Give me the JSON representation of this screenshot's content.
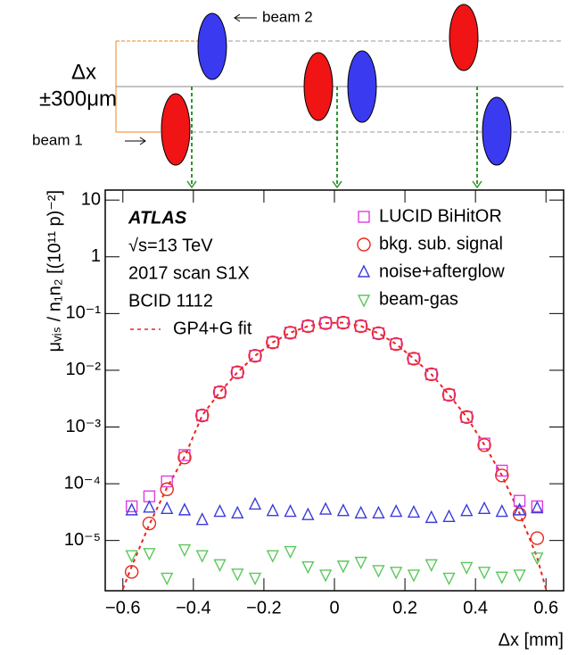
{
  "diagram": {
    "beam2": "beam 2",
    "delta": "Δx",
    "range": "±300μm",
    "beam1": "beam 1"
  },
  "chart_data": {
    "type": "scatter",
    "x_label": "Δx [mm]",
    "y_label": "μᵥᵢₛ / n₁n₂ [(10¹¹ p)⁻²]",
    "annotations": [
      "ATLAS",
      "√s=13 TeV",
      "2017 scan S1X",
      "BCID 1112"
    ],
    "log_y": true,
    "legend": "upper right",
    "xlim": [
      -0.65,
      0.65
    ],
    "ylim": [
      1.3e-06,
      15
    ],
    "xticks": [
      {
        "value": -0.6,
        "label": "−0.6"
      },
      {
        "value": -0.4,
        "label": "−0.4"
      },
      {
        "value": -0.2,
        "label": "−0.2"
      },
      0,
      0.2,
      0.4,
      0.6
    ],
    "yticks": [
      {
        "value": 1e-05,
        "label": "10⁻⁵"
      },
      {
        "value": 0.0001,
        "label": "10⁻⁴"
      },
      {
        "value": 0.001,
        "label": "10⁻³"
      },
      {
        "value": 0.01,
        "label": "10⁻²"
      },
      {
        "value": 0.1,
        "label": "10⁻¹"
      },
      1,
      10
    ],
    "x": [
      -0.575,
      -0.525,
      -0.475,
      -0.425,
      -0.375,
      -0.325,
      -0.275,
      -0.225,
      -0.175,
      -0.125,
      -0.075,
      -0.025,
      0.025,
      0.075,
      0.125,
      0.175,
      0.225,
      0.275,
      0.325,
      0.375,
      0.425,
      0.475,
      0.525,
      0.575
    ],
    "series": [
      {
        "name": "LUCID BiHitOR",
        "color": "#e03ce0",
        "marker": "square",
        "values": [
          4e-05,
          6e-05,
          0.00011,
          0.00032,
          0.0016,
          0.0041,
          0.0092,
          0.018,
          0.031,
          0.046,
          0.06,
          0.068,
          0.069,
          0.06,
          0.045,
          0.029,
          0.016,
          0.0085,
          0.0037,
          0.0015,
          0.00051,
          0.00017,
          5e-05,
          4e-05
        ]
      },
      {
        "name": "bkg. sub. signal",
        "color": "#e8281e",
        "marker": "circle",
        "values": [
          2.8e-06,
          2e-05,
          8e-05,
          0.00029,
          0.0016,
          0.0041,
          0.0092,
          0.018,
          0.031,
          0.046,
          0.06,
          0.068,
          0.069,
          0.06,
          0.045,
          0.029,
          0.016,
          0.0085,
          0.0037,
          0.0015,
          0.00048,
          0.00014,
          2.9e-05,
          1.1e-05
        ]
      },
      {
        "name": "noise+afterglow",
        "color": "#3c3cdc",
        "marker": "triangle-up",
        "values": [
          3.4e-05,
          3.8e-05,
          3.6e-05,
          3.4e-05,
          2.3e-05,
          3.2e-05,
          3e-05,
          4.3e-05,
          3.3e-05,
          3.2e-05,
          2.8e-05,
          3.5e-05,
          3.3e-05,
          3e-05,
          3e-05,
          3.2e-05,
          3.1e-05,
          2.5e-05,
          2.6e-05,
          3.3e-05,
          3.6e-05,
          3.2e-05,
          3.4e-05,
          3.7e-05
        ]
      },
      {
        "name": "beam-gas",
        "color": "#5cc85c",
        "marker": "triangle-down",
        "values": [
          5.5e-06,
          6e-06,
          2.2e-06,
          7e-06,
          5.5e-06,
          3.8e-06,
          2.6e-06,
          2.2e-06,
          5.5e-06,
          6.5e-06,
          3.5e-06,
          2.5e-06,
          3.6e-06,
          4.2e-06,
          3e-06,
          2.8e-06,
          2.5e-06,
          3.8e-06,
          2.2e-06,
          3.4e-06,
          2.8e-06,
          2.3e-06,
          2.5e-06,
          5e-06
        ]
      }
    ],
    "fit": {
      "name": "GP4+G fit",
      "color": "#e8281e",
      "x": [
        -0.6,
        -0.575,
        -0.525,
        -0.475,
        -0.425,
        -0.375,
        -0.325,
        -0.275,
        -0.225,
        -0.175,
        -0.125,
        -0.075,
        -0.025,
        0.025,
        0.075,
        0.125,
        0.175,
        0.225,
        0.275,
        0.325,
        0.375,
        0.425,
        0.475,
        0.525,
        0.575,
        0.6
      ],
      "values": [
        1.4e-06,
        3.5e-06,
        1.9e-05,
        8.5e-05,
        0.0003,
        0.0016,
        0.0041,
        0.0092,
        0.018,
        0.031,
        0.046,
        0.06,
        0.068,
        0.069,
        0.06,
        0.045,
        0.029,
        0.016,
        0.0085,
        0.0037,
        0.0015,
        0.00049,
        0.00014,
        3e-05,
        5e-06,
        1.4e-06
      ]
    }
  }
}
